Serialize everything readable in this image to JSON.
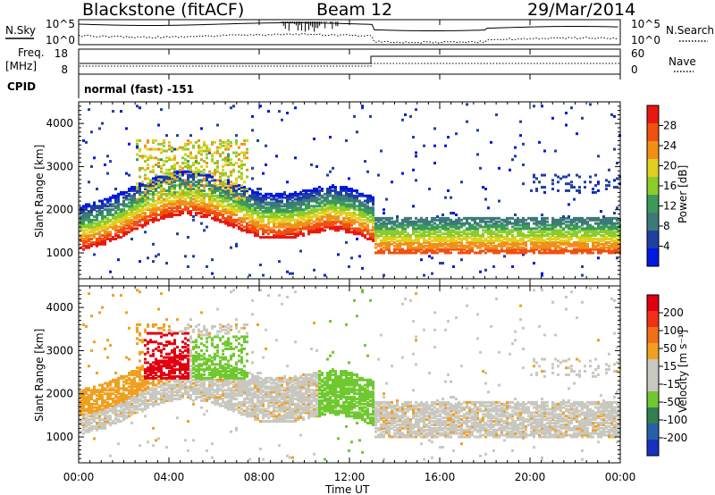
{
  "header": {
    "title": "Blackstone (fitACF)",
    "beam": "Beam 12",
    "date": "29/Mar/2014"
  },
  "top_panels": {
    "nsky_label": "N.Sky",
    "nsearch_label": "N.Search",
    "noise_ticks": [
      "10^5",
      "10^0"
    ],
    "freq_label_1": "Freq.",
    "freq_label_2": "[MHz]",
    "freq_ticks": [
      "18",
      "8"
    ],
    "nave_ticks": [
      "60",
      "0"
    ],
    "nave_label": "Nave",
    "cpid_label": "CPID",
    "cpid_value": "normal (fast) -151"
  },
  "colors": {
    "power_scale": [
      "#0018e0",
      "#2040a0",
      "#3c7a78",
      "#3a9a5a",
      "#8ccc2a",
      "#e0d020",
      "#f09018",
      "#f05010",
      "#e81810"
    ],
    "velocity_scale": [
      "#1830c0",
      "#2860a8",
      "#308050",
      "#70c830",
      "#c8c8c0",
      "#c8c8c0",
      "#f0a020",
      "#f07018",
      "#f03018",
      "#e00010"
    ]
  },
  "chart_data": [
    {
      "type": "heatmap",
      "name": "power",
      "ylabel": "Slant Range [km]",
      "y_ticks": [
        "1000",
        "2000",
        "3000",
        "4000"
      ],
      "ylim": [
        400,
        4500
      ],
      "colorbar_label": "Power [dB]",
      "colorbar_ticks": [
        "4",
        "8",
        "12",
        "16",
        "20",
        "24",
        "28"
      ],
      "colorbar_range": [
        0,
        32
      ]
    },
    {
      "type": "heatmap",
      "name": "velocity",
      "ylabel": "Slant Range [km]",
      "y_ticks": [
        "1000",
        "2000",
        "3000",
        "4000"
      ],
      "ylim": [
        400,
        4500
      ],
      "colorbar_label": "Velocity [m s⁻¹]",
      "colorbar_ticks": [
        "200",
        "100",
        "50",
        "15",
        "-15",
        "-50",
        "-100",
        "-200"
      ]
    }
  ],
  "x_axis": {
    "label": "Time UT",
    "ticks": [
      "00:00",
      "04:00",
      "08:00",
      "12:00",
      "16:00",
      "20:00",
      "00:00"
    ],
    "range_hours": [
      0,
      24
    ]
  }
}
